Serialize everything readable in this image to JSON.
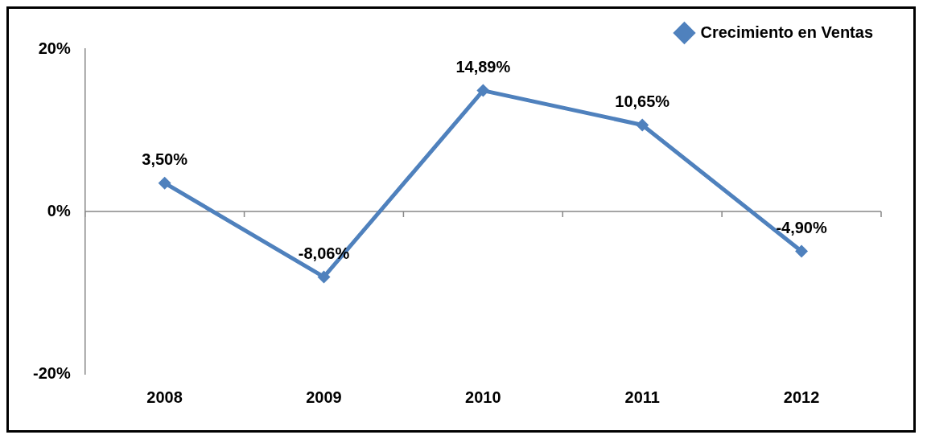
{
  "chart_data": {
    "type": "line",
    "categories": [
      "2008",
      "2009",
      "2010",
      "2011",
      "2012"
    ],
    "series": [
      {
        "name": "Crecimiento en Ventas",
        "color": "#4f81bd",
        "values": [
          3.5,
          -8.06,
          14.89,
          10.65,
          -4.9
        ],
        "value_labels": [
          "3,50%",
          "-8,06%",
          "14,89%",
          "10,65%",
          "-4,90%"
        ]
      }
    ],
    "ylim": [
      -20,
      20
    ],
    "yticks": [
      {
        "value": -20,
        "label": "-20%"
      },
      {
        "value": 0,
        "label": "0%"
      },
      {
        "value": 20,
        "label": "20%"
      }
    ],
    "ref_lines": [
      {
        "axis": "y",
        "value": 0,
        "color": "#888888"
      }
    ],
    "grid": false,
    "legend": "top right",
    "marker": "diamond",
    "line_style": "solid"
  }
}
